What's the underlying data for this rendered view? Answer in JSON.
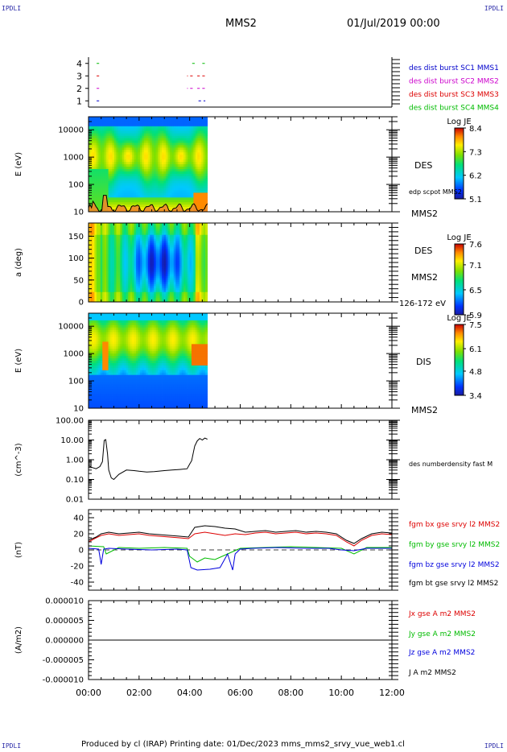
{
  "page": {
    "corner_tl": "IPDLI",
    "corner_tr": "IPDLI",
    "corner_bl": "IPDLI",
    "corner_br": "IPDLI",
    "title": "MMS2",
    "date": "01/Jul/2019 00:00",
    "footer": "Produced by cl (IRAP)   Printing date: 01/Dec/2023   mms_mms2_srvy_vue_web1.cl"
  },
  "colors": {
    "mms1": "#0000cc",
    "mms2": "#cc00cc",
    "mms3": "#dd0000",
    "mms4": "#00bb00",
    "bx": "#dd0000",
    "by": "#00bb00",
    "bz": "#0000dd",
    "bt": "#000000"
  },
  "chart_data": [
    {
      "type": "scatter",
      "panel": "burst",
      "yticks": [
        "4",
        "3",
        "2",
        "1"
      ],
      "ylim": [
        0.5,
        4.5
      ],
      "series": [
        {
          "name": "des dist burst SC1 MMS1",
          "y": 1,
          "segments": [
            [
              0.32,
              0.42
            ],
            [
              4.35,
              4.45
            ],
            [
              4.55,
              4.62
            ]
          ]
        },
        {
          "name": "des dist burst SC2 MMS2",
          "y": 2,
          "segments": [
            [
              0.32,
              0.42
            ],
            [
              3.9,
              3.93
            ],
            [
              4.02,
              4.12
            ],
            [
              4.3,
              4.4
            ],
            [
              4.5,
              4.6
            ]
          ]
        },
        {
          "name": "des dist burst SC3 MMS3",
          "y": 3,
          "segments": [
            [
              0.32,
              0.42
            ],
            [
              3.9,
              3.93
            ],
            [
              4.02,
              4.12
            ],
            [
              4.3,
              4.4
            ],
            [
              4.5,
              4.6
            ]
          ]
        },
        {
          "name": "des dist burst SC4 MMS4",
          "y": 4,
          "segments": [
            [
              0.32,
              0.42
            ],
            [
              4.1,
              4.2
            ],
            [
              4.5,
              4.6
            ]
          ]
        }
      ]
    },
    {
      "type": "heatmap",
      "panel": "des_energy",
      "ylabel": "E (eV)",
      "yscale": "log",
      "ylim": [
        10,
        30000
      ],
      "yticks": [
        "10000",
        "1000",
        "100",
        "10"
      ],
      "xrange": [
        0,
        4.7
      ],
      "label": "DES",
      "side_label": "MMS2",
      "overlay_label": "edp scpot MMS2",
      "colorbar": {
        "title": "Log JE",
        "ticks": [
          "8.4",
          "7.3",
          "6.2",
          "5.1"
        ],
        "min": 5.1,
        "max": 8.4
      }
    },
    {
      "type": "heatmap",
      "panel": "des_pitch",
      "ylabel": "a (deg)",
      "ylim": [
        0,
        180
      ],
      "yticks": [
        "150",
        "100",
        "50",
        "0"
      ],
      "xrange": [
        0,
        4.7
      ],
      "label": "DES",
      "side_label": "MMS2",
      "range_label": "126-172 eV",
      "colorbar": {
        "title": "Log JE",
        "ticks": [
          "7.6",
          "7.1",
          "6.5",
          "5.9"
        ],
        "min": 5.9,
        "max": 7.6
      }
    },
    {
      "type": "heatmap",
      "panel": "dis_energy",
      "ylabel": "E (eV)",
      "yscale": "log",
      "ylim": [
        10,
        30000
      ],
      "yticks": [
        "10000",
        "1000",
        "100",
        "10"
      ],
      "xrange": [
        0,
        4.7
      ],
      "label": "DIS",
      "side_label": "MMS2",
      "colorbar": {
        "title": "Log JE",
        "ticks": [
          "7.5",
          "6.1",
          "4.8",
          "3.4"
        ],
        "min": 3.4,
        "max": 7.5
      }
    },
    {
      "type": "line",
      "panel": "density",
      "ylabel": "(cm^-3)",
      "yscale": "log",
      "ylim": [
        0.01,
        100
      ],
      "yticks": [
        "100.00",
        "10.00",
        "1.00",
        "0.10",
        "0.01"
      ],
      "series": [
        {
          "name": "des numberdensity fast M",
          "x": [
            0,
            0.15,
            0.3,
            0.45,
            0.55,
            0.62,
            0.68,
            0.75,
            0.8,
            0.9,
            1.0,
            1.2,
            1.5,
            1.8,
            2.0,
            2.3,
            2.6,
            3.0,
            3.3,
            3.6,
            3.9,
            4.0,
            4.08,
            4.15,
            4.2,
            4.3,
            4.4,
            4.5,
            4.6,
            4.7
          ],
          "y": [
            0.5,
            0.4,
            0.35,
            0.45,
            0.8,
            9.5,
            10.5,
            2.0,
            0.3,
            0.12,
            0.1,
            0.18,
            0.3,
            0.28,
            0.26,
            0.24,
            0.25,
            0.28,
            0.3,
            0.32,
            0.35,
            0.6,
            0.9,
            2.5,
            5.0,
            9.0,
            12.0,
            10.0,
            12.5,
            11.0
          ]
        }
      ]
    },
    {
      "type": "line",
      "panel": "bfield",
      "ylabel": "(nT)",
      "ylim": [
        -50,
        50
      ],
      "yticks": [
        "40",
        "20",
        "0",
        "-20",
        "-40"
      ],
      "series": [
        {
          "name": "fgm bx gse srvy l2 MMS2",
          "x": [
            0,
            0.3,
            0.5,
            0.8,
            1.2,
            1.6,
            2.0,
            2.4,
            2.8,
            3.2,
            3.6,
            3.95,
            4.2,
            4.6,
            5.0,
            5.4,
            5.8,
            6.2,
            6.6,
            7.0,
            7.4,
            7.8,
            8.2,
            8.6,
            9.0,
            9.4,
            9.8,
            10.2,
            10.5,
            10.8,
            11.2,
            11.6,
            12.0
          ],
          "y": [
            10,
            15,
            18,
            20,
            18,
            19,
            20,
            18,
            17,
            16,
            15,
            14,
            20,
            22,
            20,
            18,
            20,
            19,
            21,
            22,
            20,
            21,
            22,
            20,
            21,
            20,
            18,
            10,
            5,
            12,
            18,
            20,
            19
          ]
        },
        {
          "name": "fgm by gse srvy l2 MMS2",
          "x": [
            0,
            0.6,
            0.7,
            1.2,
            2.0,
            3.0,
            3.9,
            4.0,
            4.3,
            4.6,
            5.0,
            5.5,
            6.0,
            7.0,
            8.0,
            9.0,
            10.0,
            10.5,
            11.0,
            12.0
          ],
          "y": [
            5,
            4,
            -5,
            3,
            2,
            3,
            2,
            -8,
            -15,
            -10,
            -12,
            -5,
            2,
            3,
            4,
            3,
            2,
            -5,
            3,
            3
          ]
        },
        {
          "name": "fgm bz gse srvy l2 MMS2",
          "x": [
            0,
            0.4,
            0.5,
            0.6,
            0.8,
            1.5,
            2.5,
            3.5,
            3.9,
            4.05,
            4.3,
            4.8,
            5.2,
            5.5,
            5.7,
            5.8,
            6.0,
            6.5,
            7.5,
            8.5,
            9.5,
            10.0,
            10.5,
            11.0,
            12.0
          ],
          "y": [
            2,
            1,
            -18,
            1,
            2,
            1,
            0,
            1,
            0,
            -22,
            -25,
            -24,
            -22,
            -5,
            -25,
            -5,
            1,
            2,
            3,
            2,
            2,
            0,
            -1,
            2,
            2
          ]
        },
        {
          "name": "fgm bt gse srvy l2 MMS2",
          "x": [
            0,
            0.3,
            0.5,
            0.8,
            1.2,
            1.6,
            2.0,
            2.4,
            2.8,
            3.2,
            3.6,
            3.95,
            4.2,
            4.6,
            5.0,
            5.4,
            5.8,
            6.2,
            6.6,
            7.0,
            7.4,
            7.8,
            8.2,
            8.6,
            9.0,
            9.4,
            9.8,
            10.2,
            10.5,
            10.8,
            11.2,
            11.6,
            12.0
          ],
          "y": [
            12,
            16,
            20,
            22,
            20,
            21,
            22,
            20,
            19,
            18,
            17,
            16,
            28,
            30,
            29,
            27,
            26,
            22,
            23,
            24,
            22,
            23,
            24,
            22,
            23,
            22,
            20,
            12,
            8,
            14,
            20,
            22,
            21
          ]
        }
      ]
    },
    {
      "type": "line",
      "panel": "current",
      "ylabel": "(A/m2)",
      "ylim": [
        -1e-05,
        1e-05
      ],
      "yticks": [
        "0.000010",
        "0.000005",
        "0.000000",
        "-0.000005",
        "-0.000010"
      ],
      "xlabel": "",
      "xticks": [
        "00:00",
        "02:00",
        "04:00",
        "06:00",
        "08:00",
        "10:00",
        "12:00"
      ],
      "xlim": [
        0,
        12
      ],
      "series": [
        {
          "name": "Jx gse A m2 MMS2",
          "x": [
            0,
            12
          ],
          "y": [
            0,
            0
          ]
        },
        {
          "name": "Jy gse A m2 MMS2",
          "x": [
            0,
            12
          ],
          "y": [
            0,
            0
          ]
        },
        {
          "name": "Jz gse A m2 MMS2",
          "x": [
            0,
            12
          ],
          "y": [
            0,
            0
          ]
        },
        {
          "name": "J A m2 MMS2",
          "x": [
            0,
            12
          ],
          "y": [
            0,
            0
          ]
        }
      ]
    }
  ]
}
